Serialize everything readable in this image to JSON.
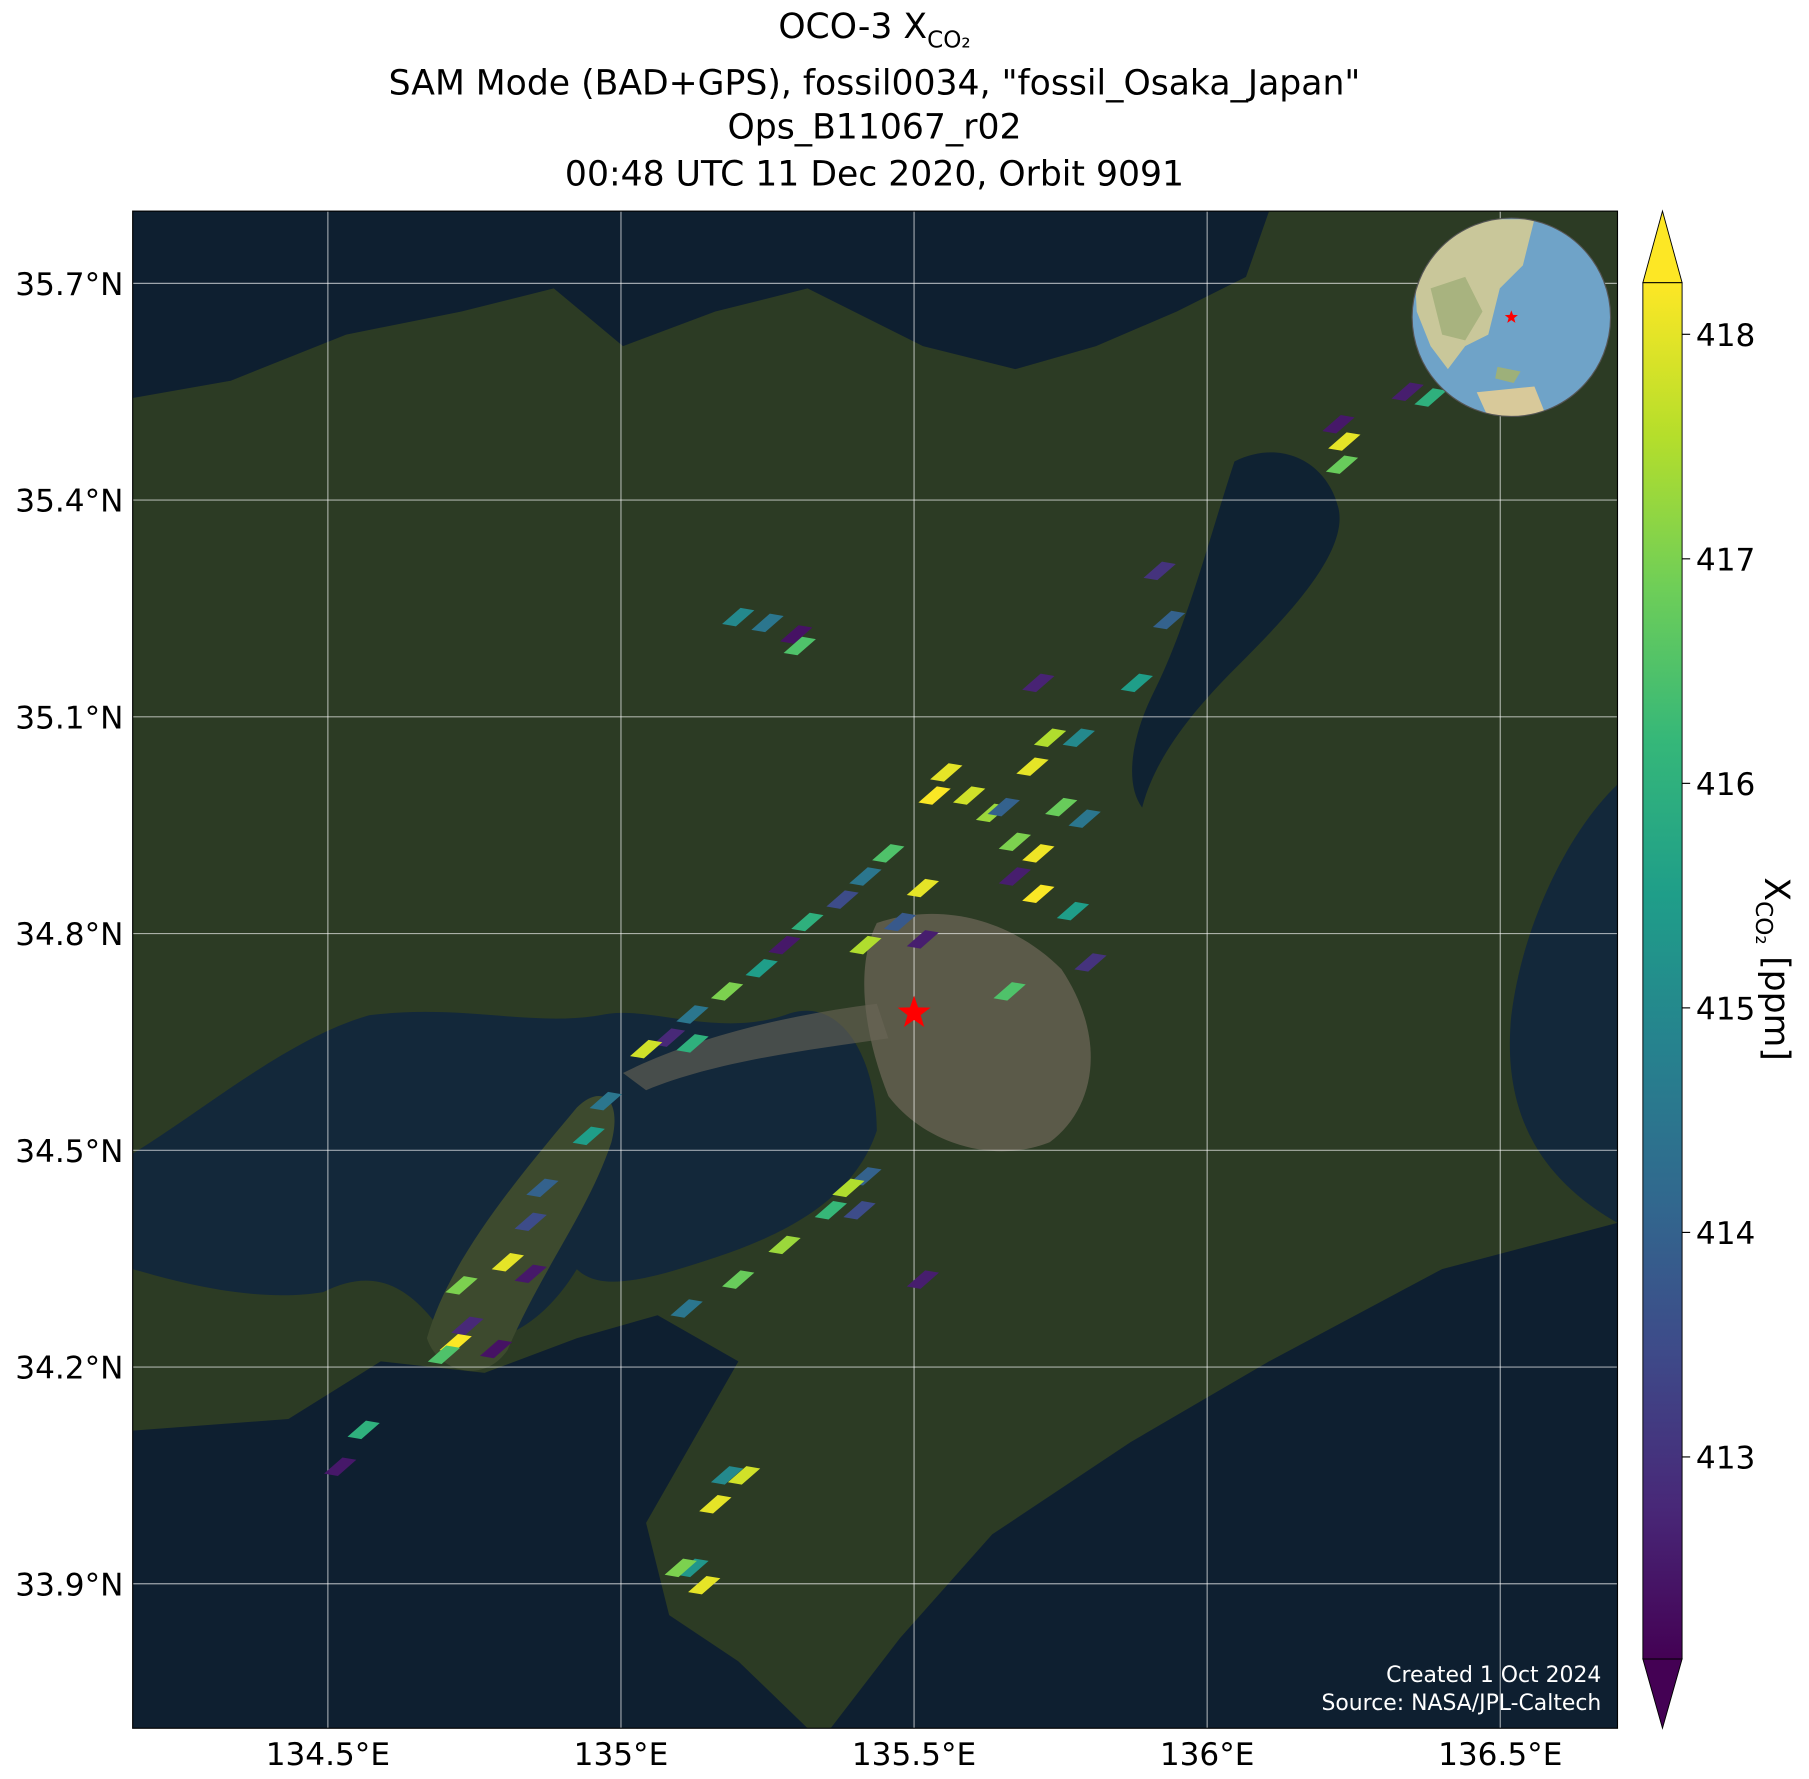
{
  "chart_data": {
    "type": "map",
    "title": "OCO-3 X",
    "title_sub": "CO₂",
    "subtitles": [
      "SAM Mode (BAD+GPS), fossil0034, \"fossil_Osaka_Japan\"",
      "Ops_B11067_r02",
      "00:48 UTC 11 Dec 2020, Orbit 9091"
    ],
    "xlim": [
      134.167,
      136.7
    ],
    "ylim": [
      33.7,
      35.8
    ],
    "xticks": [
      {
        "value": 134.5,
        "label": "134.5°E"
      },
      {
        "value": 135,
        "label": "135°E"
      },
      {
        "value": 135.5,
        "label": "135.5°E"
      },
      {
        "value": 136,
        "label": "136°E"
      },
      {
        "value": 136.5,
        "label": "136.5°E"
      }
    ],
    "yticks": [
      {
        "value": 33.9,
        "label": "33.9°N"
      },
      {
        "value": 34.2,
        "label": "34.2°N"
      },
      {
        "value": 34.5,
        "label": "34.5°N"
      },
      {
        "value": 34.8,
        "label": "34.8°N"
      },
      {
        "value": 35.1,
        "label": "35.1°N"
      },
      {
        "value": 35.4,
        "label": "35.4°N"
      },
      {
        "value": 35.7,
        "label": "35.7°N"
      }
    ],
    "grid": true,
    "colormap": "viridis",
    "clim": [
      412.1,
      418.23
    ],
    "cticks": [
      413,
      414,
      415,
      416,
      417,
      418
    ],
    "colorbar_label": {
      "symbol": "X",
      "sub": "CO₂",
      "unit": "[ppm]"
    },
    "target": {
      "lon": 135.5,
      "lat": 34.69,
      "color": "#ff0000"
    },
    "soundings": {
      "lon": [
        136.224,
        136.234,
        136.23,
        136.342,
        136.381,
        135.919,
        135.935,
        135.88,
        135.712,
        135.2,
        135.25,
        135.299,
        135.305,
        135.555,
        135.594,
        135.535,
        135.633,
        135.732,
        135.781,
        135.702,
        135.653,
        135.672,
        135.712,
        135.751,
        135.791,
        135.672,
        135.712,
        135.771,
        135.801,
        135.456,
        135.417,
        135.378,
        135.476,
        135.515,
        135.417,
        135.318,
        135.279,
        135.24,
        135.181,
        135.122,
        135.082,
        135.043,
        135.122,
        135.663,
        135.515,
        134.974,
        134.945,
        134.866,
        134.846,
        134.807,
        134.728,
        134.846,
        134.738,
        134.718,
        134.698,
        134.787,
        134.561,
        134.521,
        135.112,
        135.2,
        135.279,
        135.358,
        135.407,
        135.417,
        135.388,
        135.515,
        135.181,
        135.21,
        135.161,
        135.122,
        135.142,
        135.102
      ],
      "lat": [
        35.505,
        35.481,
        35.449,
        35.55,
        35.542,
        35.302,
        35.234,
        35.147,
        35.147,
        35.238,
        35.23,
        35.214,
        35.198,
        35.023,
        34.991,
        34.991,
        34.967,
        35.071,
        35.071,
        35.031,
        34.975,
        34.927,
        34.911,
        34.975,
        34.959,
        34.879,
        34.855,
        34.831,
        34.76,
        34.911,
        34.879,
        34.847,
        34.816,
        34.792,
        34.784,
        34.816,
        34.784,
        34.752,
        34.72,
        34.688,
        34.656,
        34.64,
        34.648,
        34.72,
        34.863,
        34.568,
        34.52,
        34.448,
        34.401,
        34.345,
        34.313,
        34.329,
        34.257,
        34.233,
        34.217,
        34.225,
        34.113,
        34.062,
        34.281,
        34.321,
        34.369,
        34.417,
        34.417,
        34.464,
        34.448,
        34.321,
        34.05,
        34.05,
        34.01,
        33.922,
        33.898,
        33.922
      ],
      "xco2": [
        412.5,
        418,
        416.8,
        412.6,
        416,
        413,
        414,
        415.5,
        412.7,
        415,
        414.5,
        412.4,
        416.5,
        418,
        417.8,
        418.2,
        417.3,
        417.5,
        415,
        418,
        414,
        417,
        418.1,
        416.8,
        414.5,
        412.6,
        418.2,
        415.5,
        413,
        416.5,
        414.5,
        413.5,
        413.8,
        412.6,
        417.5,
        416,
        412.5,
        415.5,
        417,
        414.5,
        412.8,
        417.8,
        416,
        416.5,
        418,
        414.5,
        415.5,
        414,
        413.5,
        418,
        417,
        412.5,
        412.8,
        418.2,
        416.5,
        412.4,
        416,
        412.5,
        414.5,
        416.8,
        417.3,
        416.2,
        413.5,
        414,
        417.5,
        412.6,
        415,
        417.8,
        418,
        415.3,
        418,
        417
      ]
    },
    "credits": [
      "Created 1 Oct 2024",
      "Source: NASA/JPL-Caltech"
    ]
  }
}
